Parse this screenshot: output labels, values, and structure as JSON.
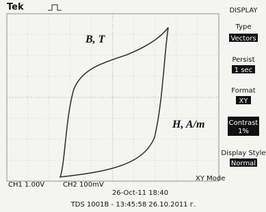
{
  "header": {
    "brand": "Tek"
  },
  "screen": {
    "y_label": "B, T",
    "x_label": "H, A/m"
  },
  "menu": {
    "title": "DISPLAY",
    "items": [
      {
        "label": "Type",
        "value": "Vectors"
      },
      {
        "label": "Persist",
        "value": "1 sec"
      },
      {
        "label": "Format",
        "value": "XY"
      },
      {
        "label": "Contrast",
        "value": "1%"
      },
      {
        "label": "Display Style",
        "value": "Normal"
      }
    ]
  },
  "status": {
    "ch1": "CH1 1.00V",
    "ch2": "CH2 100mV",
    "mode": "XY Mode",
    "date": "26-Oct-11 18:40"
  },
  "footer": "TDS 1001B - 13:45:58  26.10.2011 г."
}
